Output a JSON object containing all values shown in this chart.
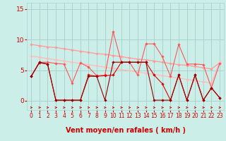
{
  "background_color": "#cceee8",
  "grid_color": "#aad4ce",
  "xlabel": "Vent moyen/en rafales ( km/h )",
  "xlabel_color": "#cc0000",
  "xlabel_fontsize": 7,
  "yticks": [
    0,
    5,
    10,
    15
  ],
  "xticks": [
    0,
    1,
    2,
    3,
    4,
    5,
    6,
    7,
    8,
    9,
    10,
    11,
    12,
    13,
    14,
    15,
    16,
    17,
    18,
    19,
    20,
    21,
    22,
    23
  ],
  "ylim": [
    -1.5,
    16
  ],
  "xlim": [
    -0.5,
    23.5
  ],
  "lines": [
    {
      "x": [
        0,
        1,
        2,
        3,
        4,
        5,
        6,
        7,
        8,
        9,
        10,
        11,
        12,
        13,
        14,
        15,
        16,
        17,
        18,
        19,
        20,
        21,
        22,
        23
      ],
      "y": [
        9.2,
        9.0,
        8.8,
        8.7,
        8.5,
        8.3,
        8.1,
        7.9,
        7.7,
        7.6,
        7.4,
        7.2,
        7.0,
        6.8,
        6.7,
        6.5,
        6.3,
        6.1,
        5.9,
        5.8,
        5.6,
        5.4,
        5.2,
        6.2
      ],
      "color": "#ff9999",
      "linewidth": 0.9,
      "marker": "D",
      "markersize": 1.8,
      "zorder": 2
    },
    {
      "x": [
        0,
        1,
        2,
        3,
        4,
        5,
        6,
        7,
        8,
        9,
        10,
        11,
        12,
        13,
        14,
        15,
        16,
        17,
        18,
        19,
        20,
        21,
        22,
        23
      ],
      "y": [
        7.3,
        7.1,
        6.9,
        6.7,
        6.5,
        6.3,
        6.1,
        5.9,
        5.7,
        5.5,
        5.3,
        5.1,
        4.9,
        4.7,
        4.5,
        4.3,
        4.1,
        3.9,
        3.7,
        3.5,
        3.3,
        3.1,
        2.9,
        6.3
      ],
      "color": "#ffbbbb",
      "linewidth": 0.9,
      "marker": "D",
      "markersize": 1.8,
      "zorder": 2
    },
    {
      "x": [
        0,
        1,
        2,
        3,
        4,
        5,
        6,
        7,
        8,
        9,
        10,
        11,
        12,
        13,
        14,
        15,
        16,
        17,
        18,
        19,
        20,
        21,
        22,
        23
      ],
      "y": [
        4.0,
        6.3,
        6.3,
        6.1,
        6.0,
        2.9,
        6.2,
        5.5,
        4.1,
        4.2,
        11.3,
        6.3,
        6.3,
        4.2,
        9.3,
        9.3,
        7.2,
        4.0,
        9.2,
        6.0,
        6.0,
        5.9,
        2.1,
        6.1
      ],
      "color": "#ff5555",
      "linewidth": 0.8,
      "marker": "D",
      "markersize": 1.8,
      "zorder": 3
    },
    {
      "x": [
        0,
        1,
        2,
        3,
        4,
        5,
        6,
        7,
        8,
        9,
        10,
        11,
        12,
        13,
        14,
        15,
        16,
        17,
        18,
        19,
        20,
        21,
        22,
        23
      ],
      "y": [
        4.0,
        6.2,
        6.0,
        0.1,
        0.1,
        0.1,
        0.1,
        4.2,
        4.0,
        4.1,
        4.2,
        6.3,
        6.3,
        6.3,
        6.3,
        4.2,
        2.8,
        0.1,
        4.2,
        0.1,
        4.2,
        0.1,
        2.1,
        0.5
      ],
      "color": "#dd0000",
      "linewidth": 0.8,
      "marker": "D",
      "markersize": 1.8,
      "zorder": 4
    },
    {
      "x": [
        0,
        1,
        2,
        3,
        4,
        5,
        6,
        7,
        8,
        9,
        10,
        11,
        12,
        13,
        14,
        15,
        16,
        17,
        18,
        19,
        20,
        21,
        22,
        23
      ],
      "y": [
        4.0,
        6.3,
        6.0,
        0.1,
        0.1,
        0.1,
        0.1,
        4.0,
        4.0,
        0.1,
        6.3,
        6.3,
        6.3,
        6.3,
        6.3,
        0.1,
        0.1,
        0.1,
        4.2,
        0.1,
        4.2,
        0.1,
        2.1,
        0.5
      ],
      "color": "#990000",
      "linewidth": 0.8,
      "marker": "D",
      "markersize": 1.8,
      "zorder": 4
    }
  ],
  "arrow_color": "#cc0000",
  "tick_label_color": "#cc0000",
  "tick_fontsize": 5.5,
  "ytick_fontsize": 6.5
}
